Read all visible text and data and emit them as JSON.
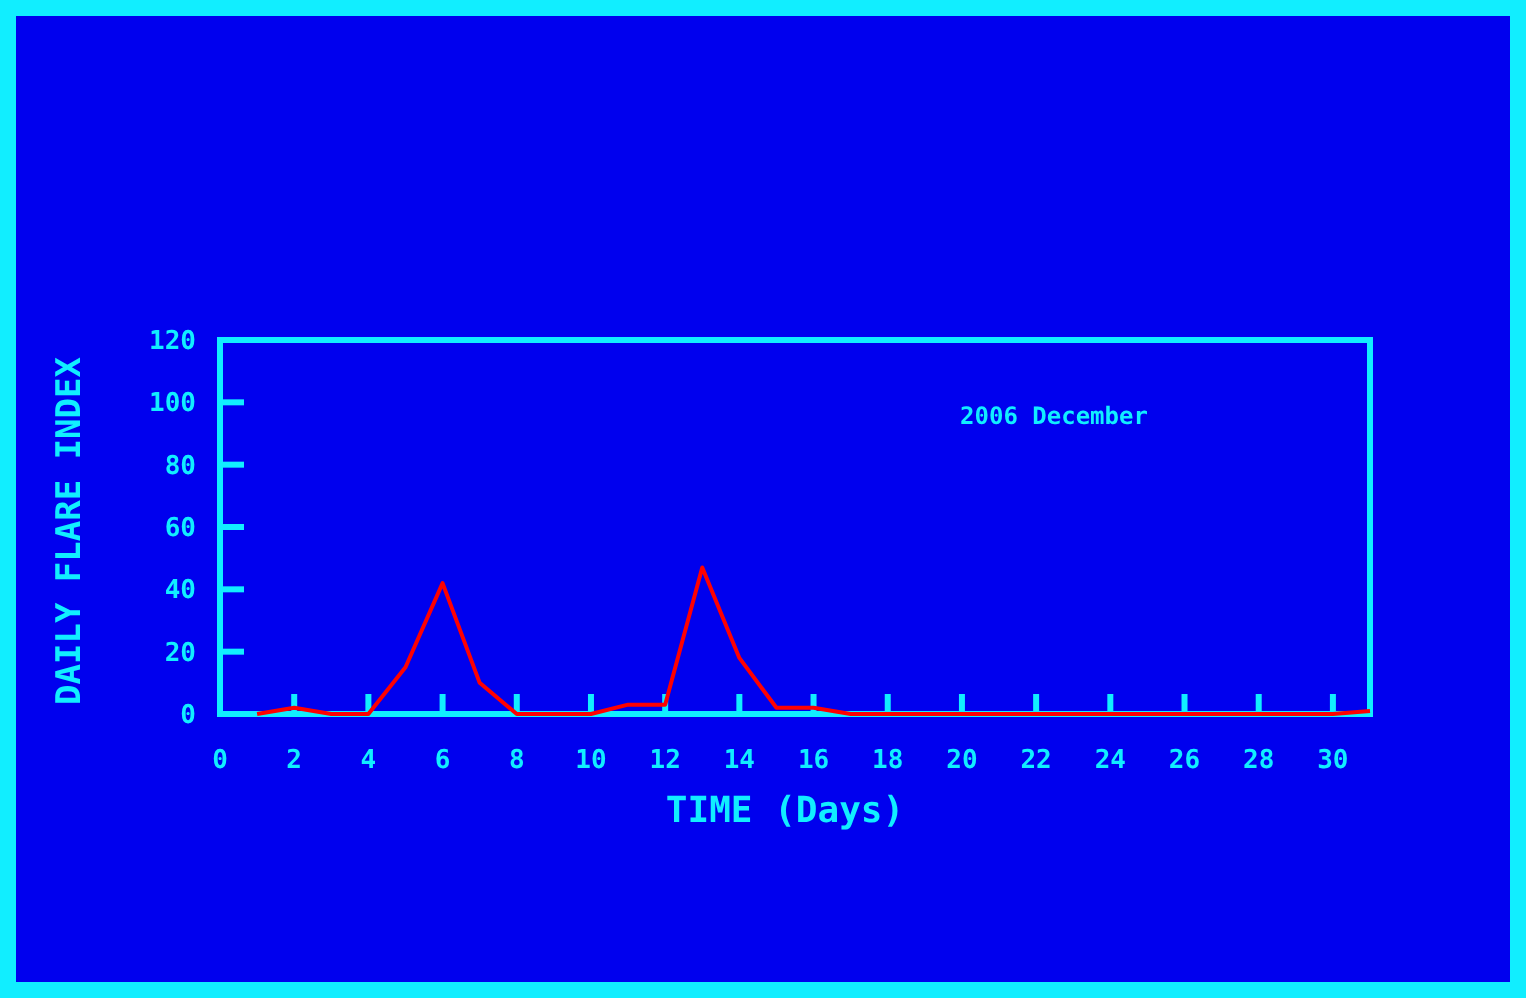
{
  "chart_data": {
    "type": "line",
    "xlabel": "TIME (Days)",
    "ylabel": "DAILY FLARE INDEX",
    "annotations": [
      "2006 December"
    ],
    "x": [
      1,
      2,
      3,
      4,
      5,
      6,
      7,
      8,
      9,
      10,
      11,
      12,
      13,
      14,
      15,
      16,
      17,
      18,
      19,
      20,
      21,
      22,
      23,
      24,
      25,
      26,
      27,
      28,
      29,
      30,
      31
    ],
    "series": [
      {
        "color": "#ff0000",
        "values": [
          0,
          2,
          0,
          0,
          15,
          42,
          10,
          0,
          0,
          0,
          3,
          3,
          47,
          18,
          2,
          2,
          0,
          0,
          0,
          0,
          0,
          0,
          0,
          0,
          0,
          0,
          0,
          0,
          0,
          0,
          1
        ]
      }
    ],
    "xlim": [
      0,
      31
    ],
    "ylim": [
      0,
      120
    ],
    "xticks": [
      0,
      2,
      4,
      6,
      8,
      10,
      12,
      14,
      16,
      18,
      20,
      22,
      24,
      26,
      28,
      30
    ],
    "yticks": [
      0,
      20,
      40,
      60,
      80,
      100,
      120
    ],
    "grid": false,
    "marker": "none",
    "line_style": "solid"
  }
}
